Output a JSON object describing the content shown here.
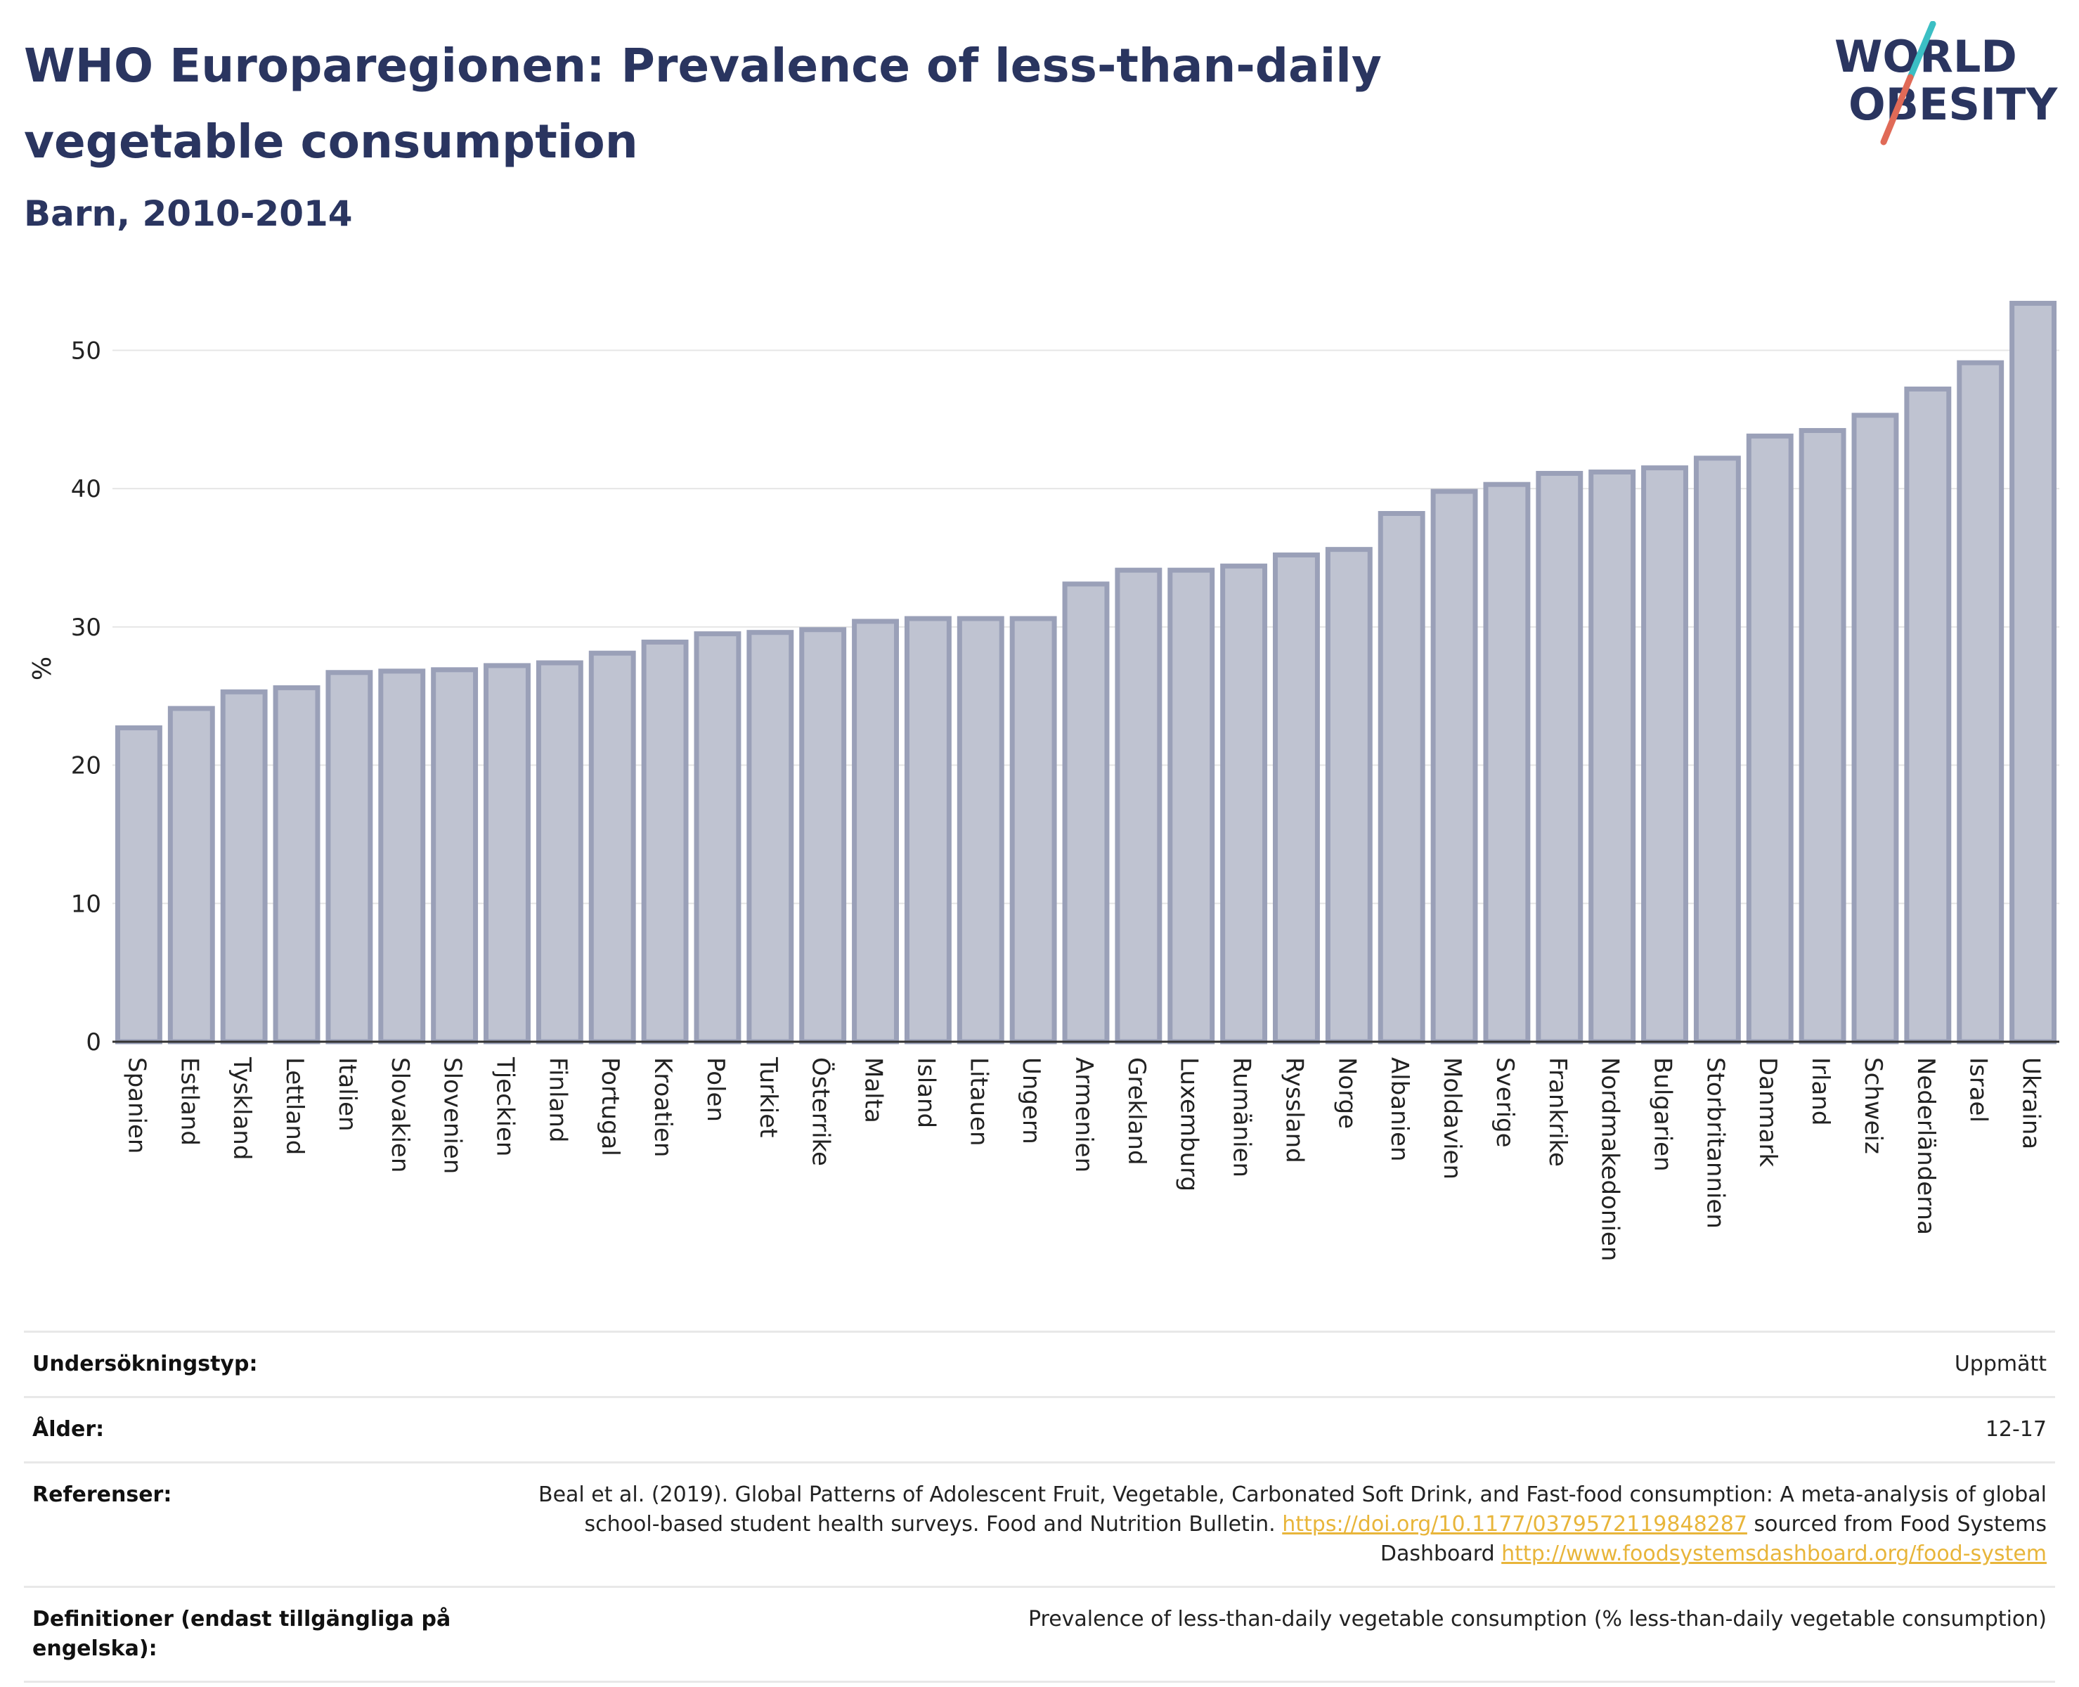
{
  "header": {
    "title": "WHO Europaregionen: Prevalence of less-than-daily vegetable consumption",
    "subtitle": "Barn, 2010-2014"
  },
  "logo": {
    "line1": "WORLD",
    "line2": "OBESITY",
    "colors": {
      "text": "#2a3560",
      "slash_top": "#3bbfc4",
      "slash_bottom": "#e06a57"
    }
  },
  "chart_data": {
    "type": "bar",
    "ylabel": "%",
    "ylim": [
      0,
      55
    ],
    "yticks": [
      0,
      10,
      20,
      30,
      40,
      50
    ],
    "grid": true,
    "bar_color": "#bfc3d1",
    "bar_border_color": "#9aa0b8",
    "categories": [
      "Spanien",
      "Estland",
      "Tyskland",
      "Lettland",
      "Italien",
      "Slovakien",
      "Slovenien",
      "Tjeckien",
      "Finland",
      "Portugal",
      "Kroatien",
      "Polen",
      "Turkiet",
      "Österrike",
      "Malta",
      "Island",
      "Litauen",
      "Ungern",
      "Armenien",
      "Grekland",
      "Luxemburg",
      "Rumänien",
      "Ryssland",
      "Norge",
      "Albanien",
      "Moldavien",
      "Sverige",
      "Frankrike",
      "Nordmakedonien",
      "Bulgarien",
      "Storbritannien",
      "Danmark",
      "Irland",
      "Schweiz",
      "Nederländerna",
      "Israel",
      "Ukraina"
    ],
    "values": [
      22.7,
      24.1,
      25.3,
      25.6,
      26.7,
      26.8,
      26.9,
      27.2,
      27.4,
      28.1,
      28.9,
      29.5,
      29.6,
      29.8,
      30.4,
      30.6,
      30.6,
      30.6,
      33.1,
      34.1,
      34.1,
      34.4,
      35.2,
      35.6,
      38.2,
      39.8,
      40.3,
      41.1,
      41.2,
      41.5,
      42.2,
      43.8,
      44.2,
      45.3,
      47.2,
      49.1,
      53.4
    ]
  },
  "meta": {
    "rows": [
      {
        "label": "Undersökningstyp:",
        "value": "Uppmätt"
      },
      {
        "label": "Ålder:",
        "value": "12-17"
      },
      {
        "label": "Referenser:",
        "text1": "Beal et al. (2019). Global Patterns of Adolescent Fruit, Vegetable, Carbonated Soft Drink, and Fast-food consumption: A meta-analysis of global school-based student health surveys. Food and Nutrition Bulletin. ",
        "link1": "https://doi.org/10.1177/0379572119848287",
        "text2": " sourced from Food Systems Dashboard ",
        "link2": "http://www.foodsystemsdashboard.org/food-system"
      },
      {
        "label": "Definitioner (endast tillgängliga på engelska):",
        "value": "Prevalence of less-than-daily vegetable consumption (% less-than-daily vegetable consumption)"
      }
    ]
  }
}
